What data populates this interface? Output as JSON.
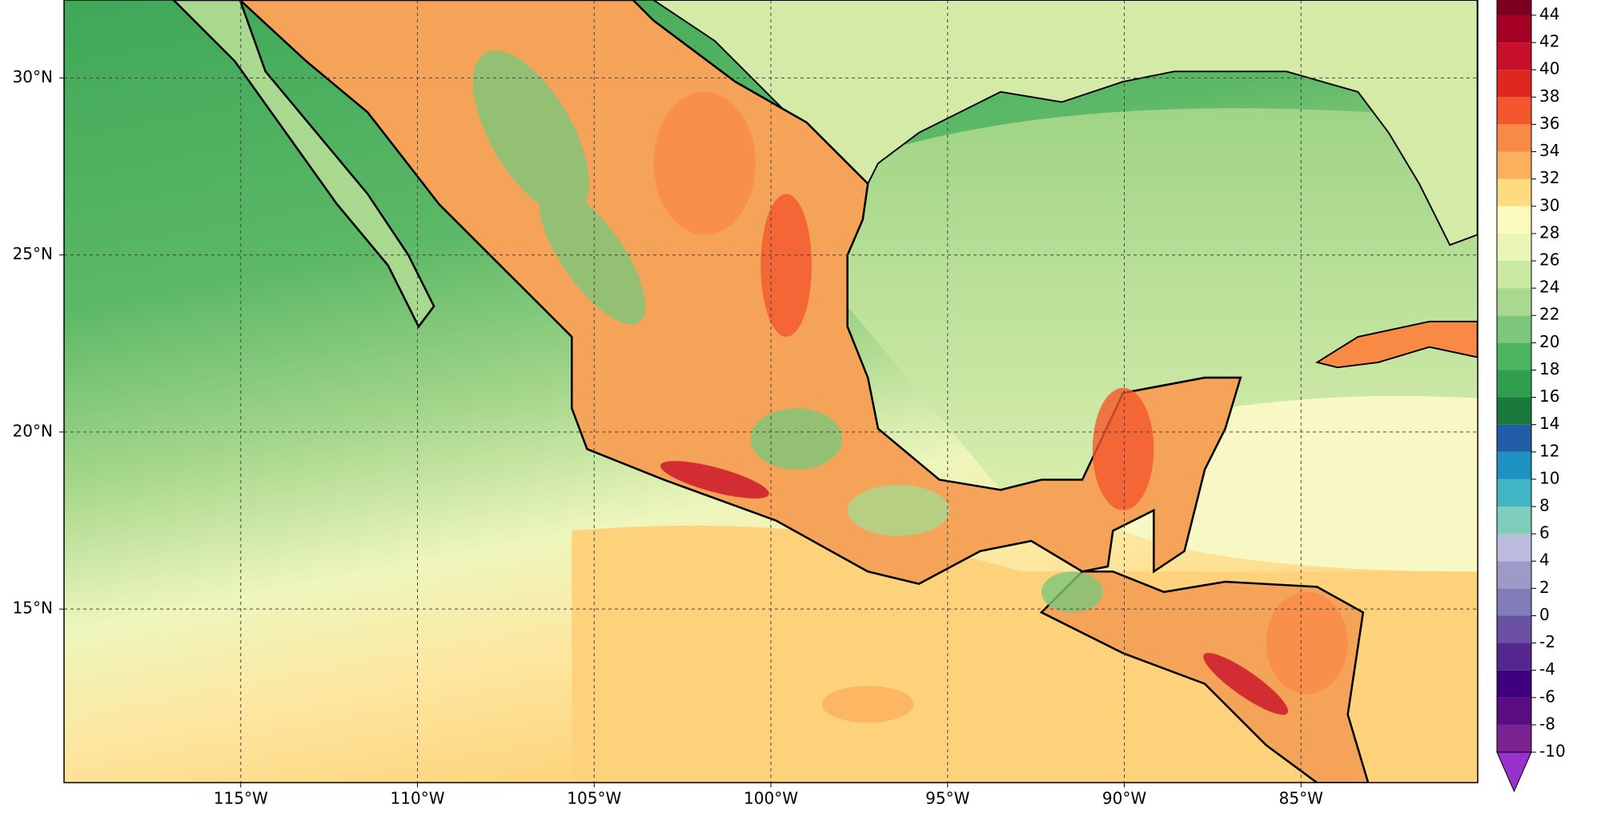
{
  "chart_data": {
    "type": "contour_map",
    "xlim": [
      -120,
      -80
    ],
    "ylim": [
      10.1,
      32.2
    ],
    "xticks": [
      {
        "value": -115,
        "label": "115°W"
      },
      {
        "value": -110,
        "label": "110°W"
      },
      {
        "value": -105,
        "label": "105°W"
      },
      {
        "value": -100,
        "label": "100°W"
      },
      {
        "value": -95,
        "label": "95°W"
      },
      {
        "value": -90,
        "label": "90°W"
      },
      {
        "value": -85,
        "label": "85°W"
      }
    ],
    "yticks": [
      {
        "value": 15,
        "label": "15°N"
      },
      {
        "value": 20,
        "label": "20°N"
      },
      {
        "value": 25,
        "label": "25°N"
      },
      {
        "value": 30,
        "label": "30°N"
      }
    ],
    "grid": true,
    "colorbar": {
      "clim": [
        -10,
        46
      ],
      "levels": [
        -10,
        -8,
        -6,
        -4,
        -2,
        0,
        2,
        4,
        6,
        8,
        10,
        12,
        14,
        16,
        18,
        20,
        22,
        24,
        26,
        28,
        30,
        32,
        34,
        36,
        38,
        40,
        42,
        44,
        46
      ],
      "colors": [
        "#7b2392",
        "#5a0d82",
        "#3f007d",
        "#54278f",
        "#6a51a3",
        "#807dba",
        "#9e9ac8",
        "#bcbddc",
        "#7fcdbb",
        "#41b6c4",
        "#1d91c0",
        "#225ea8",
        "#1a7a3c",
        "#2f9e4f",
        "#4cb35e",
        "#7cc77a",
        "#a9d98e",
        "#cbe8a3",
        "#eaf5b8",
        "#fefbc0",
        "#fedb80",
        "#fdb05c",
        "#f98a46",
        "#f4572e",
        "#e0271f",
        "#c8102a",
        "#a50026",
        "#7d0022"
      ],
      "ticks": [
        -10,
        -8,
        -6,
        -4,
        -2,
        0,
        2,
        4,
        6,
        8,
        10,
        12,
        14,
        16,
        18,
        20,
        22,
        24,
        26,
        28,
        30,
        32,
        34,
        36,
        38,
        40,
        42,
        44
      ],
      "extend_color": "#9932cc"
    }
  }
}
